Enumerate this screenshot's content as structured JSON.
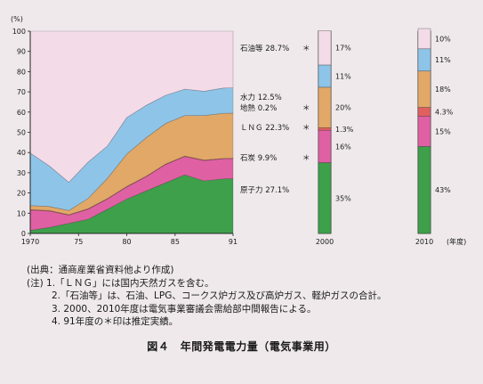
{
  "chart_data": {
    "type": "area",
    "ylabel": "(%)",
    "ylim": [
      0,
      100
    ],
    "yticks": [
      "0",
      "10",
      "20",
      "30",
      "40",
      "50",
      "60",
      "70",
      "80",
      "90",
      "100"
    ],
    "xticks": [
      "1970",
      "75",
      "80",
      "85",
      "91"
    ],
    "xlim": [
      1970,
      1991
    ],
    "x": [
      1970,
      1972,
      1974,
      1976,
      1978,
      1980,
      1982,
      1984,
      1986,
      1988,
      1990,
      1991
    ],
    "series": [
      {
        "name": "原子力",
        "color": "#3ea04a",
        "values": [
          1.5,
          3,
          5,
          7,
          12,
          17,
          21,
          25,
          29,
          26,
          27,
          27.1
        ]
      },
      {
        "name": "石炭",
        "color": "#e060a4",
        "values": [
          10,
          8,
          4,
          5,
          5,
          6,
          7,
          9,
          9,
          10,
          9.9,
          9.9
        ]
      },
      {
        "name": "地熱",
        "color": "#e06060",
        "values": [
          0.3,
          0.3,
          0.3,
          0.3,
          0.3,
          0.3,
          0.3,
          0.3,
          0.3,
          0.3,
          0.2,
          0.2
        ]
      },
      {
        "name": "LNG",
        "color": "#e2a868",
        "values": [
          2,
          2,
          2,
          5,
          10,
          16,
          19,
          20,
          20,
          22,
          22.3,
          22.3
        ]
      },
      {
        "name": "水力",
        "color": "#8ec4e8",
        "values": [
          26,
          20,
          14,
          18,
          16,
          18,
          16,
          14,
          13,
          12,
          12.5,
          12.5
        ]
      },
      {
        "name": "石油等",
        "color": "#f4dbe8",
        "values": [
          60.2,
          66.7,
          74.7,
          64.7,
          56.7,
          42.7,
          36.7,
          31.7,
          28.7,
          29.7,
          28.1,
          28.7
        ]
      }
    ],
    "side_labels": [
      {
        "name": "石油等",
        "value": "28.7%",
        "star": "＊"
      },
      {
        "name": "水力",
        "value": "12.5%",
        "star": ""
      },
      {
        "name": "地熱",
        "value": "0.2%",
        "star": "＊"
      },
      {
        "name": "ＬＮＧ",
        "value": "22.3%",
        "star": "＊"
      },
      {
        "name": "石炭",
        "value": "9.9%",
        "star": "＊"
      },
      {
        "name": "原子力",
        "value": "27.1%",
        "star": ""
      }
    ],
    "projections": [
      {
        "year_label": "2000",
        "segments": [
          {
            "series": "原子力",
            "value": 35,
            "label": "35%"
          },
          {
            "series": "石炭",
            "value": 16,
            "label": "16%"
          },
          {
            "series": "地熱",
            "value": 1.3,
            "label": "1.3%"
          },
          {
            "series": "LNG",
            "value": 20,
            "label": "20%"
          },
          {
            "series": "水力",
            "value": 11,
            "label": "11%"
          },
          {
            "series": "石油等",
            "value": 17,
            "label": "17%"
          }
        ]
      },
      {
        "year_label": "2010",
        "year_suffix": "(年度)",
        "segments": [
          {
            "series": "原子力",
            "value": 43,
            "label": "43%"
          },
          {
            "series": "石炭",
            "value": 15,
            "label": "15%"
          },
          {
            "series": "地熱",
            "value": 4.3,
            "label": "4.3%"
          },
          {
            "series": "LNG",
            "value": 18,
            "label": "18%"
          },
          {
            "series": "水力",
            "value": 11,
            "label": "11%"
          },
          {
            "series": "石油等",
            "value": 10,
            "label": "10%"
          }
        ]
      }
    ]
  },
  "notes": {
    "source": "(出典：通商産業省資料他より作成)",
    "note1": "(注) 1.「ＬＮＧ」には国内天然ガスを含む。",
    "note2": "2.「石油等」は、石油、LPG、コークス炉ガス及び高炉ガス、軽炉ガスの合計。",
    "note3": "3. 2000、2010年度は電気事業審議会需給部中間報告による。",
    "note4": "4. 91年度の＊印は推定実績。"
  },
  "caption": "図４　年間発電電力量（電気事業用）"
}
